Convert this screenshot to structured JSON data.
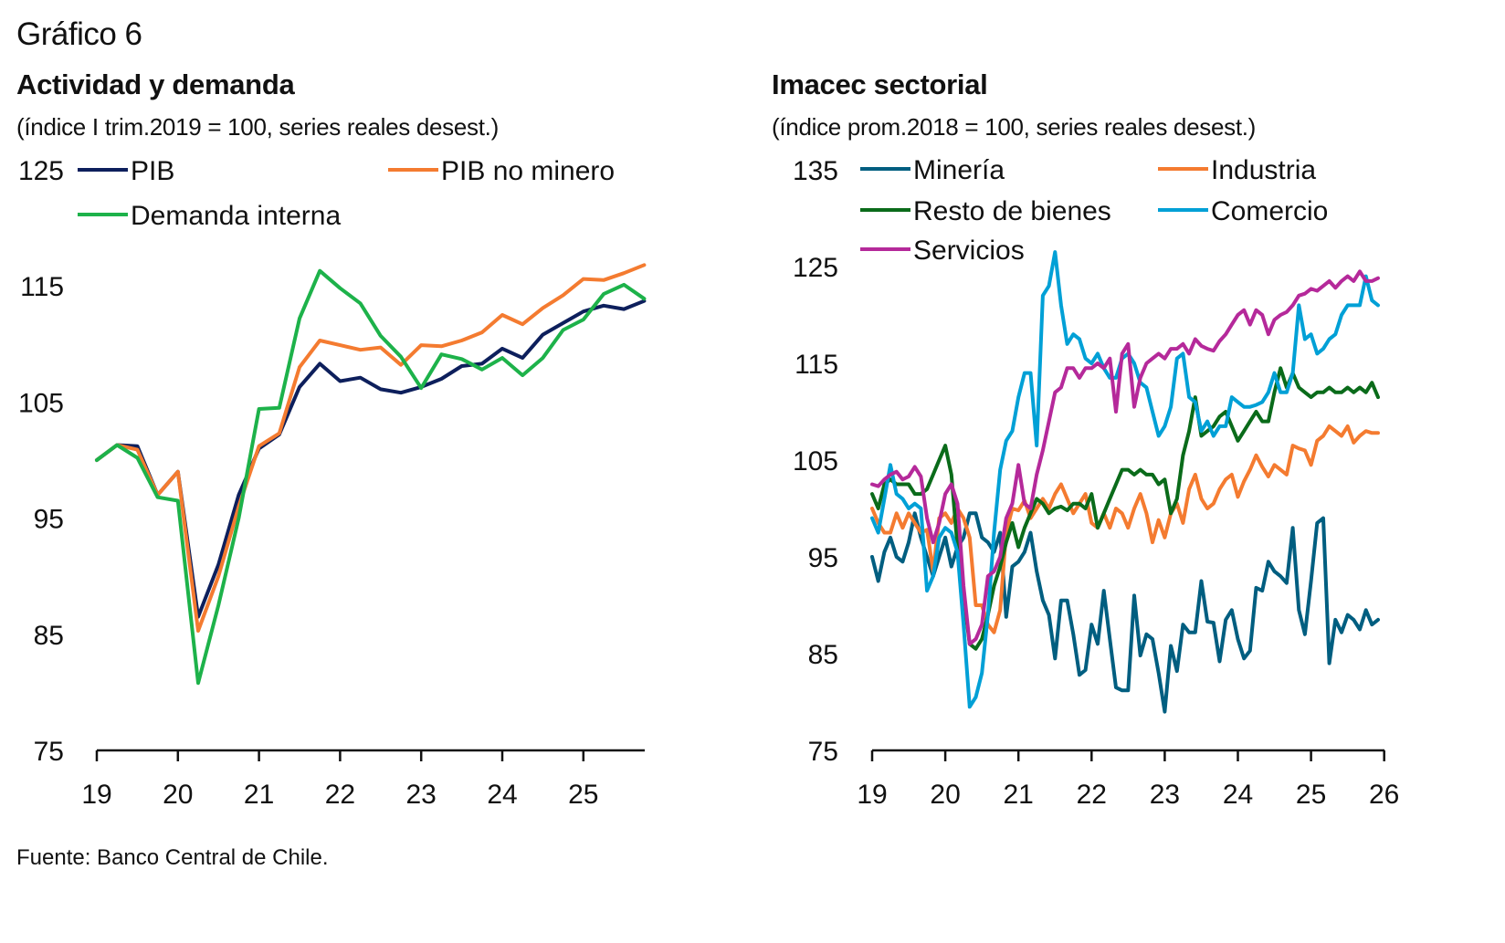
{
  "figure": {
    "number_label": "Gráfico 6",
    "source": "Fuente: Banco Central de Chile."
  },
  "chart_data": [
    {
      "type": "line",
      "title": "Actividad y demanda",
      "subtitle": "(índice I trim.2019 = 100, series reales desest.)",
      "xlabel": "",
      "ylabel": "",
      "frequency": "quarterly",
      "x_start": "2019Q1",
      "x_tick_labels": [
        "19",
        "20",
        "21",
        "22",
        "23",
        "24",
        "25"
      ],
      "x_range": [
        2019,
        2025.75
      ],
      "y_tick_labels": [
        "125",
        "115",
        "105",
        "95",
        "85",
        "75"
      ],
      "ylim": [
        75,
        125
      ],
      "y_ticks": [
        125,
        115,
        105,
        95,
        85,
        75
      ],
      "grid": false,
      "legend": "top",
      "series": [
        {
          "name": "PIB",
          "color": "#0d1f5c",
          "values": [
            100,
            101.3,
            101.2,
            97,
            99,
            86.5,
            91,
            97,
            101,
            102.2,
            106.3,
            108.3,
            106.8,
            107.1,
            106.1,
            105.8,
            106.3,
            107,
            108.1,
            108.3,
            109.6,
            108.8,
            110.8,
            111.8,
            112.8,
            113.3,
            113,
            113.7
          ]
        },
        {
          "name": "PIB no minero",
          "color": "#f47b30",
          "values": [
            100,
            101.3,
            100.9,
            97,
            99,
            85.3,
            90,
            96,
            101.2,
            102.3,
            108,
            110.3,
            109.9,
            109.5,
            109.7,
            108.2,
            109.9,
            109.8,
            110.3,
            111,
            112.5,
            111.7,
            113.1,
            114.2,
            115.6,
            115.5,
            116.1,
            116.8
          ]
        },
        {
          "name": "Demanda interna",
          "color": "#1db24a",
          "values": [
            100,
            101.3,
            100.2,
            96.8,
            96.5,
            80.8,
            87.5,
            95,
            104.4,
            104.5,
            112.2,
            116.3,
            114.8,
            113.5,
            110.7,
            108.9,
            106.2,
            109.1,
            108.7,
            107.8,
            108.8,
            107.3,
            108.8,
            111.2,
            112.1,
            114.3,
            115.1,
            113.9
          ]
        }
      ]
    },
    {
      "type": "line",
      "title": "Imacec sectorial",
      "subtitle": "(índice prom.2018 = 100, series reales desest.)",
      "xlabel": "",
      "ylabel": "",
      "frequency": "monthly",
      "x_start": "2019-01",
      "x_tick_labels": [
        "19",
        "20",
        "21",
        "22",
        "23",
        "24",
        "25",
        "26"
      ],
      "x_range": [
        2019,
        2026
      ],
      "y_tick_labels": [
        "135",
        "125",
        "115",
        "105",
        "95",
        "85",
        "75"
      ],
      "ylim": [
        75,
        135
      ],
      "y_ticks": [
        135,
        125,
        115,
        105,
        95,
        85,
        75
      ],
      "grid": false,
      "legend": "top",
      "series": [
        {
          "name": "Minería",
          "color": "#005e80",
          "values": [
            95,
            92.5,
            95.5,
            97,
            95,
            94.5,
            96.5,
            99.5,
            97,
            95,
            93,
            95,
            97,
            94,
            96,
            97,
            99.5,
            99.5,
            97,
            96.5,
            95.5,
            97.5,
            88.8,
            94,
            94.5,
            95.5,
            97.5,
            93.5,
            90.5,
            89,
            84.5,
            90.5,
            90.5,
            87,
            82.8,
            83.3,
            88,
            86,
            91.5,
            86.5,
            81.5,
            81.2,
            81.2,
            91,
            84.8,
            87,
            86.5,
            83,
            79,
            85.8,
            83.2,
            88,
            87.2,
            87.2,
            92.5,
            88.3,
            88.2,
            84.2,
            88.5,
            89.5,
            86.5,
            84.5,
            85.3,
            91.8,
            91.5,
            94.5,
            93.5,
            93,
            92.3,
            98,
            89.5,
            87,
            92.5,
            98.5,
            99,
            84,
            88.5,
            87.2,
            89,
            88.5,
            87.5,
            89.5,
            88,
            88.5
          ]
        },
        {
          "name": "Industria",
          "color": "#f47b30",
          "values": [
            100,
            98.5,
            97.5,
            97.5,
            99.5,
            98,
            99.5,
            98.5,
            97.5,
            97.8,
            93.5,
            99,
            99.5,
            98.5,
            100,
            99,
            97,
            90,
            90,
            88,
            87.2,
            89.5,
            97.5,
            100,
            99.8,
            100.8,
            99,
            100,
            101,
            100,
            101.5,
            102.5,
            101,
            99.5,
            100.5,
            101.5,
            98.5,
            98,
            99.5,
            98,
            100,
            99.5,
            98,
            100,
            101.5,
            99.5,
            96.5,
            98.8,
            97,
            99.5,
            100.5,
            98.5,
            102,
            103.5,
            101,
            100,
            100.5,
            102,
            103,
            103.5,
            101.2,
            102.8,
            104,
            105.5,
            104.3,
            103.3,
            104.5,
            104,
            103.5,
            106.5,
            106.2,
            106,
            104.5,
            107,
            107.5,
            108.5,
            108,
            107.5,
            108.5,
            106.8,
            107.5,
            108,
            107.8,
            107.8
          ]
        },
        {
          "name": "Resto de bienes",
          "color": "#0a6b1a",
          "values": [
            101.5,
            100,
            102.5,
            103,
            102.5,
            102.5,
            102.5,
            101.5,
            101.5,
            102,
            103.5,
            105,
            106.5,
            103.5,
            96,
            91,
            86,
            85.5,
            86.5,
            89,
            92,
            94,
            96.5,
            98.5,
            96,
            98,
            99.5,
            101,
            100.5,
            99.5,
            100,
            100.2,
            99.8,
            100.5,
            100.5,
            100,
            101.5,
            98,
            99.5,
            101,
            102.5,
            104,
            104,
            103.5,
            104,
            103.5,
            103.5,
            102.5,
            103,
            99.5,
            101,
            105.5,
            108,
            111.5,
            107.5,
            108,
            108.5,
            109.5,
            110,
            108.5,
            107,
            108,
            109,
            110,
            109,
            109,
            112,
            114.5,
            112.5,
            114,
            112.5,
            112,
            111.5,
            112,
            112,
            112.5,
            112,
            112,
            112.5,
            112,
            112.5,
            112,
            113,
            111.5
          ]
        },
        {
          "name": "Comercio",
          "color": "#00a0d6",
          "values": [
            99,
            97.5,
            101,
            104.5,
            101.5,
            101,
            100,
            100.5,
            100,
            91.5,
            93,
            97,
            98,
            97.5,
            95.5,
            88,
            79.5,
            80.5,
            83,
            89,
            97.5,
            104,
            107,
            108,
            111.5,
            114,
            114,
            106.5,
            122,
            123,
            126.5,
            121,
            117,
            118,
            117.5,
            115.5,
            115,
            116,
            114.5,
            113.5,
            113.5,
            115.5,
            116,
            115,
            113,
            112.5,
            110,
            107.5,
            108.5,
            110.5,
            115.5,
            116,
            111.5,
            111,
            108,
            109,
            107.5,
            108.5,
            108.5,
            111.5,
            111,
            110.5,
            110.5,
            110.7,
            111,
            112,
            114,
            112,
            112,
            114,
            121,
            117.5,
            118,
            116,
            116.5,
            117.5,
            118,
            120,
            121,
            121,
            121,
            124,
            121.5,
            121
          ]
        },
        {
          "name": "Servicios",
          "color": "#b5299a",
          "values": [
            102.5,
            102.3,
            103,
            103.5,
            103.8,
            103,
            103.3,
            104.3,
            103.3,
            99,
            96.5,
            98.5,
            101.5,
            102.5,
            100.5,
            92,
            86,
            86.5,
            88,
            93,
            93.5,
            95,
            99,
            100.5,
            104.5,
            100.5,
            100,
            103.5,
            106,
            109,
            112,
            112.5,
            114.5,
            114.5,
            113.5,
            114.5,
            114.5,
            115,
            114.5,
            115.5,
            110,
            116,
            117,
            110.5,
            113.5,
            115,
            115.5,
            116,
            115.5,
            116.5,
            116.5,
            117,
            116,
            117.5,
            116.8,
            116.5,
            116.3,
            117.3,
            118,
            119,
            120,
            120.5,
            119,
            120.5,
            120,
            118,
            119.5,
            120,
            120.3,
            121,
            122,
            122.2,
            122.7,
            122.5,
            123,
            123.5,
            122.8,
            123.5,
            124,
            123.5,
            124.5,
            123.5,
            123.5,
            123.8
          ]
        }
      ]
    }
  ]
}
